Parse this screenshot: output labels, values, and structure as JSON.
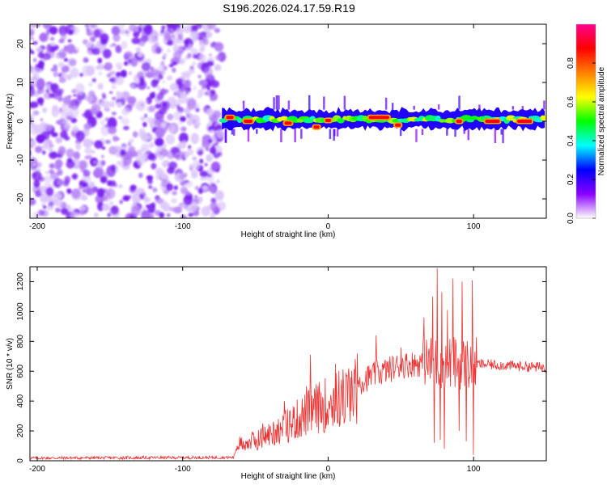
{
  "title": "S196.2026.024.17.59.R19",
  "chart_data": [
    {
      "type": "heatmap",
      "name": "spectrogram",
      "xlabel": "Height of straight line (km)",
      "ylabel": "Frequency (Hz)",
      "xlim": [
        -205,
        150
      ],
      "ylim": [
        -25,
        25
      ],
      "xticks": [
        -200,
        -100,
        0,
        100
      ],
      "yticks": [
        20,
        10,
        0,
        -10,
        -20
      ],
      "colorbar": {
        "label": "Normalized spectral amplitude",
        "range": [
          0,
          1
        ],
        "ticks": [
          0.0,
          0.2,
          0.4,
          0.6,
          0.8
        ],
        "colors": [
          "#ffffff",
          "#8a00ff",
          "#0000ff",
          "#00ffff",
          "#00ff00",
          "#ffff00",
          "#ff8000",
          "#ff0000",
          "#ff0090"
        ]
      },
      "noise_region_x": [
        -205,
        -73
      ],
      "signal_region_x": [
        -73,
        150
      ],
      "signal_center_freq_hz": 0.5,
      "signal_band_hz": [
        -2,
        3
      ],
      "peak_segments": [
        {
          "x": [
            -70,
            -65
          ],
          "y": 1.0
        },
        {
          "x": [
            -58,
            -52
          ],
          "y": 0.0
        },
        {
          "x": [
            -30,
            -25
          ],
          "y": -0.5
        },
        {
          "x": [
            -10,
            -6
          ],
          "y": -1.5
        },
        {
          "x": [
            -2,
            2
          ],
          "y": 0.2
        },
        {
          "x": [
            28,
            42
          ],
          "y": 1.0
        },
        {
          "x": [
            46,
            50
          ],
          "y": -1.0
        },
        {
          "x": [
            88,
            92
          ],
          "y": 0.0
        },
        {
          "x": [
            108,
            118
          ],
          "y": 0.0
        },
        {
          "x": [
            130,
            140
          ],
          "y": 0.0
        }
      ]
    },
    {
      "type": "line",
      "name": "snr",
      "xlabel": "Height of straight line (km)",
      "ylabel": "SNR (10 * v/v)",
      "xlim": [
        -205,
        150
      ],
      "ylim": [
        0,
        1300
      ],
      "xticks": [
        -200,
        -100,
        0,
        100
      ],
      "yticks": [
        0,
        200,
        400,
        600,
        800,
        1000,
        1200
      ],
      "color": "#ee3333",
      "envelope": [
        {
          "x": -205,
          "y": 18
        },
        {
          "x": -65,
          "y": 22
        },
        {
          "x": -62,
          "y": 120
        },
        {
          "x": -50,
          "y": 150
        },
        {
          "x": -30,
          "y": 250
        },
        {
          "x": -10,
          "y": 380
        },
        {
          "x": 10,
          "y": 470
        },
        {
          "x": 30,
          "y": 570
        },
        {
          "x": 50,
          "y": 640
        },
        {
          "x": 70,
          "y": 660
        },
        {
          "x": 100,
          "y": 650
        },
        {
          "x": 150,
          "y": 625
        }
      ],
      "spikes": [
        {
          "x": -60,
          "y": 150
        },
        {
          "x": -45,
          "y": 250
        },
        {
          "x": -30,
          "y": 400
        },
        {
          "x": -15,
          "y": 500
        },
        {
          "x": -12,
          "y": 710
        },
        {
          "x": 5,
          "y": 650
        },
        {
          "x": 20,
          "y": 720
        },
        {
          "x": 33,
          "y": 840
        },
        {
          "x": 50,
          "y": 760
        },
        {
          "x": 66,
          "y": 960
        },
        {
          "x": 72,
          "y": 1100
        },
        {
          "x": 75,
          "y": 1290
        },
        {
          "x": 78,
          "y": 1130
        },
        {
          "x": 82,
          "y": 1010
        },
        {
          "x": 86,
          "y": 1220
        },
        {
          "x": 92,
          "y": 1200
        },
        {
          "x": 99,
          "y": 1210
        }
      ],
      "dips": [
        {
          "x": 73,
          "y": 120
        },
        {
          "x": 77,
          "y": 140
        },
        {
          "x": 80,
          "y": 80
        },
        {
          "x": 90,
          "y": 200
        },
        {
          "x": 95,
          "y": 130
        },
        {
          "x": 100,
          "y": 40
        }
      ]
    }
  ]
}
